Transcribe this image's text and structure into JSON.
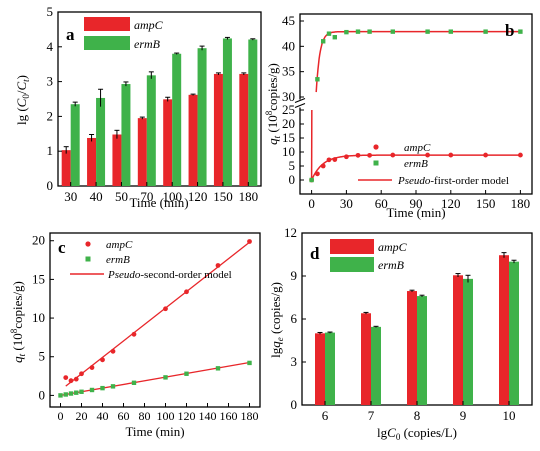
{
  "colors": {
    "ampC": "#e8262a",
    "ermB": "#3fb24a",
    "fit": "#e8262a",
    "axis": "#000000"
  },
  "chart_data": [
    {
      "panel": "a",
      "type": "bar",
      "xlabel": "Time (min)",
      "ylabel": "lg (C0/Ct)",
      "ylim": [
        0,
        5
      ],
      "yticks": [
        "0",
        "1",
        "2",
        "3",
        "4",
        "5"
      ],
      "categories": [
        "30",
        "40",
        "50",
        "70",
        "100",
        "120",
        "150",
        "180"
      ],
      "legend_position": "top-left",
      "series": [
        {
          "name": "ampC",
          "values": [
            1.03,
            1.38,
            1.48,
            1.95,
            2.49,
            2.62,
            3.22,
            3.22
          ],
          "errors": [
            0.1,
            0.1,
            0.12,
            0.03,
            0.06,
            0.02,
            0.03,
            0.03
          ]
        },
        {
          "name": "ermB",
          "values": [
            2.35,
            2.53,
            2.93,
            3.18,
            3.8,
            3.96,
            4.24,
            4.21
          ],
          "errors": [
            0.06,
            0.25,
            0.06,
            0.1,
            0.02,
            0.06,
            0.03,
            0.02
          ]
        }
      ]
    },
    {
      "panel": "b",
      "type": "scatter",
      "xlabel": "Time (min)",
      "ylabel": "qt (10^8 copies/g)",
      "xlim": [
        -10,
        190
      ],
      "xticks": [
        "0",
        "30",
        "60",
        "90",
        "120",
        "150",
        "180"
      ],
      "yticks_lower": [
        "0",
        "5",
        "10",
        "15",
        "20",
        "25"
      ],
      "yticks_upper": [
        "30",
        "35",
        "40",
        "45"
      ],
      "axis_break": [
        25,
        30
      ],
      "legend_position": "bottom-right",
      "series": [
        {
          "name": "ampC",
          "x": [
            0,
            5,
            10,
            15,
            20,
            30,
            40,
            50,
            70,
            100,
            120,
            150,
            180
          ],
          "y": [
            0,
            2.2,
            5.0,
            7.2,
            7.3,
            8.3,
            8.8,
            8.8,
            8.9,
            8.9,
            8.9,
            8.9,
            8.9
          ]
        },
        {
          "name": "ermB",
          "x": [
            0,
            5,
            10,
            15,
            20,
            30,
            40,
            50,
            70,
            100,
            120,
            150,
            180
          ],
          "y": [
            0,
            33.5,
            41.0,
            42.5,
            41.8,
            42.8,
            42.9,
            42.9,
            42.9,
            42.9,
            42.9,
            42.9,
            42.9
          ]
        },
        {
          "name": "Pseudo-first-order model"
        }
      ]
    },
    {
      "panel": "c",
      "type": "scatter",
      "xlabel": "Time (min)",
      "ylabel": "qt (10^8 copies/g)",
      "xlim": [
        -10,
        190
      ],
      "ylim": [
        -1.5,
        21
      ],
      "xticks": [
        "0",
        "20",
        "40",
        "60",
        "80",
        "100",
        "120",
        "140",
        "160",
        "180"
      ],
      "yticks": [
        "0",
        "5",
        "10",
        "15",
        "20"
      ],
      "legend_position": "top-left",
      "series": [
        {
          "name": "ampC",
          "x": [
            5,
            10,
            15,
            20,
            30,
            40,
            50,
            70,
            100,
            120,
            150,
            180
          ],
          "y": [
            2.3,
            1.9,
            2.1,
            2.8,
            3.6,
            4.6,
            5.7,
            7.9,
            11.2,
            13.4,
            16.8,
            19.9
          ]
        },
        {
          "name": "ermB",
          "x": [
            0,
            5,
            10,
            15,
            20,
            30,
            40,
            50,
            70,
            100,
            120,
            150,
            180
          ],
          "y": [
            0,
            0.12,
            0.24,
            0.35,
            0.47,
            0.7,
            0.94,
            1.17,
            1.63,
            2.33,
            2.8,
            3.5,
            4.2
          ]
        },
        {
          "name": "Pseudo-second-order model"
        }
      ]
    },
    {
      "panel": "d",
      "type": "bar",
      "xlabel": "lgC0 (copies/L)",
      "ylabel": "lgqe (copies/g)",
      "ylim": [
        0,
        12
      ],
      "yticks": [
        "0",
        "3",
        "6",
        "9",
        "12"
      ],
      "categories": [
        "6",
        "7",
        "8",
        "9",
        "10"
      ],
      "legend_position": "top-left",
      "series": [
        {
          "name": "ampC",
          "values": [
            5.0,
            6.4,
            7.95,
            9.05,
            10.45
          ],
          "errors": [
            0.06,
            0.06,
            0.06,
            0.12,
            0.18
          ]
        },
        {
          "name": "ermB",
          "values": [
            5.05,
            5.45,
            7.6,
            8.8,
            10.0
          ],
          "errors": [
            0.04,
            0.04,
            0.06,
            0.25,
            0.1
          ]
        }
      ]
    }
  ]
}
